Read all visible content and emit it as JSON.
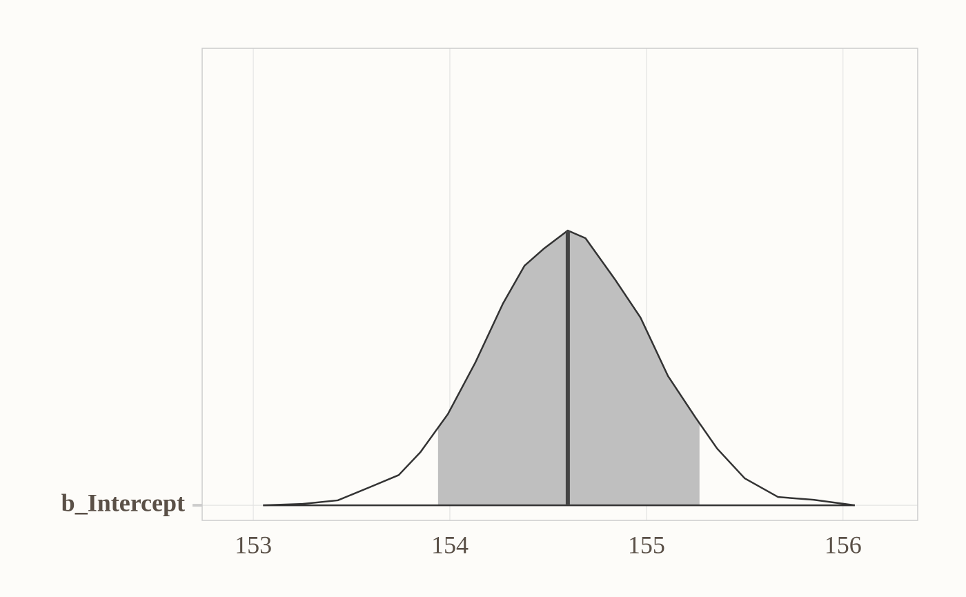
{
  "chart_data": {
    "type": "area",
    "category": "b_Intercept",
    "x": [
      153.05,
      153.25,
      153.43,
      153.6,
      153.74,
      153.85,
      153.99,
      154.13,
      154.27,
      154.38,
      154.48,
      154.6,
      154.69,
      154.84,
      154.97,
      155.11,
      155.25,
      155.36,
      155.5,
      155.67,
      155.85,
      156.06
    ],
    "values": [
      0,
      0.005,
      0.018,
      0.068,
      0.11,
      0.193,
      0.332,
      0.52,
      0.734,
      0.872,
      0.935,
      1.0,
      0.972,
      0.822,
      0.683,
      0.47,
      0.319,
      0.206,
      0.098,
      0.03,
      0.02,
      0
    ],
    "interval": [
      153.94,
      155.27
    ],
    "median": 154.6,
    "fill_color": "#bfbfbf",
    "line_color": "#333333",
    "xlim": [
      152.74,
      156.38
    ],
    "ylim": [
      -0.055,
      1.663
    ],
    "xticks": [
      153,
      154,
      155,
      156
    ],
    "grid": true
  }
}
